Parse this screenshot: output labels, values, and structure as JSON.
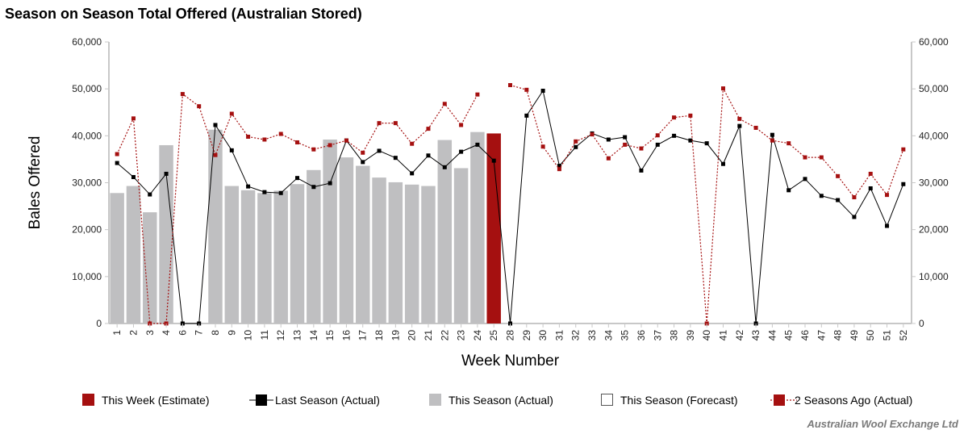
{
  "chart_data": {
    "type": "bar",
    "title": "Season on Season Total Offered (Australian Stored)",
    "xlabel": "Week Number",
    "ylabel": "Bales Offered",
    "ylim": [
      0,
      60000
    ],
    "yticks": [
      "0",
      "10,000",
      "20,000",
      "30,000",
      "40,000",
      "50,000",
      "60,000"
    ],
    "ytick_values": [
      0,
      10000,
      20000,
      30000,
      40000,
      50000,
      60000
    ],
    "categories": [
      "1",
      "2",
      "3",
      "4",
      "6",
      "7",
      "8",
      "9",
      "10",
      "11",
      "12",
      "13",
      "14",
      "15",
      "16",
      "17",
      "18",
      "19",
      "20",
      "21",
      "22",
      "23",
      "24",
      "25",
      "28",
      "29",
      "30",
      "31",
      "32",
      "33",
      "34",
      "35",
      "36",
      "37",
      "38",
      "39",
      "40",
      "41",
      "42",
      "43",
      "44",
      "45",
      "46",
      "47",
      "48",
      "49",
      "50",
      "51",
      "52"
    ],
    "series": [
      {
        "name": "This Week (Estimate)",
        "kind": "bar",
        "color": "#a51010",
        "values": [
          null,
          null,
          null,
          null,
          null,
          null,
          null,
          null,
          null,
          null,
          null,
          null,
          null,
          null,
          null,
          null,
          null,
          null,
          null,
          null,
          null,
          null,
          null,
          40500,
          null,
          null,
          null,
          null,
          null,
          null,
          null,
          null,
          null,
          null,
          null,
          null,
          null,
          null,
          null,
          null,
          null,
          null,
          null,
          null,
          null,
          null,
          null,
          null,
          null
        ]
      },
      {
        "name": "Last Season (Actual)",
        "kind": "line",
        "color": "#000000",
        "values": [
          34200,
          31200,
          27500,
          31900,
          0,
          0,
          42300,
          36900,
          29200,
          28000,
          27800,
          31000,
          29100,
          29900,
          39000,
          34400,
          36800,
          35300,
          32000,
          35800,
          33300,
          36600,
          38100,
          34700,
          0,
          44300,
          49600,
          33600,
          37600,
          40500,
          39200,
          39700,
          32600,
          38100,
          40000,
          39000,
          38400,
          34000,
          42100,
          0,
          40200,
          28400,
          30800,
          27200,
          26300,
          22700,
          28800,
          20800,
          29700
        ]
      },
      {
        "name": "This Season (Actual)",
        "kind": "bar",
        "color": "#bfbfc1",
        "values": [
          27800,
          29300,
          23700,
          38000,
          null,
          null,
          41300,
          29300,
          28400,
          27800,
          28300,
          29700,
          32700,
          39200,
          35400,
          33600,
          31100,
          30100,
          29600,
          29300,
          39100,
          33100,
          40800,
          null,
          null,
          null,
          null,
          null,
          null,
          null,
          null,
          null,
          null,
          null,
          null,
          null,
          null,
          null,
          null,
          null,
          null,
          null,
          null,
          null,
          null,
          null,
          null,
          null,
          null
        ]
      },
      {
        "name": "This Season (Forecast)",
        "kind": "bar",
        "color": "#ffffff",
        "values": [
          null,
          null,
          null,
          null,
          null,
          null,
          null,
          null,
          null,
          null,
          null,
          null,
          null,
          null,
          null,
          null,
          null,
          null,
          null,
          null,
          null,
          null,
          null,
          null,
          null,
          null,
          null,
          null,
          null,
          null,
          null,
          null,
          null,
          null,
          null,
          null,
          null,
          null,
          null,
          null,
          null,
          null,
          null,
          null,
          null,
          null,
          null,
          null,
          null
        ]
      },
      {
        "name": "2 Seasons Ago (Actual)",
        "kind": "line",
        "color": "#a51010",
        "values": [
          36100,
          43700,
          0,
          0,
          48900,
          46300,
          35900,
          44700,
          39800,
          39200,
          40400,
          38600,
          37100,
          38000,
          39000,
          36400,
          42700,
          42700,
          38300,
          41500,
          46800,
          42300,
          48800,
          null,
          50800,
          49800,
          37700,
          32900,
          38800,
          40300,
          35200,
          38100,
          37300,
          40100,
          43900,
          44300,
          0,
          50100,
          43600,
          41700,
          39000,
          38400,
          35400,
          35400,
          31400,
          26900,
          31900,
          27400,
          37100
        ]
      }
    ],
    "legend": {
      "items": [
        {
          "label": "This Week (Estimate)",
          "marker": "square",
          "color": "#a51010"
        },
        {
          "label": "Last Season (Actual)",
          "marker": "line-square",
          "color": "#000000"
        },
        {
          "label": "This Season (Actual)",
          "marker": "square",
          "color": "#bfbfc1"
        },
        {
          "label": "This Season (Forecast)",
          "marker": "hollow-square",
          "color": "#ffffff"
        },
        {
          "label": "2 Seasons Ago (Actual)",
          "marker": "dotted-square",
          "color": "#a51010"
        }
      ],
      "position": "bottom"
    },
    "credit": "Australian Wool Exchange Ltd",
    "grid": false
  }
}
